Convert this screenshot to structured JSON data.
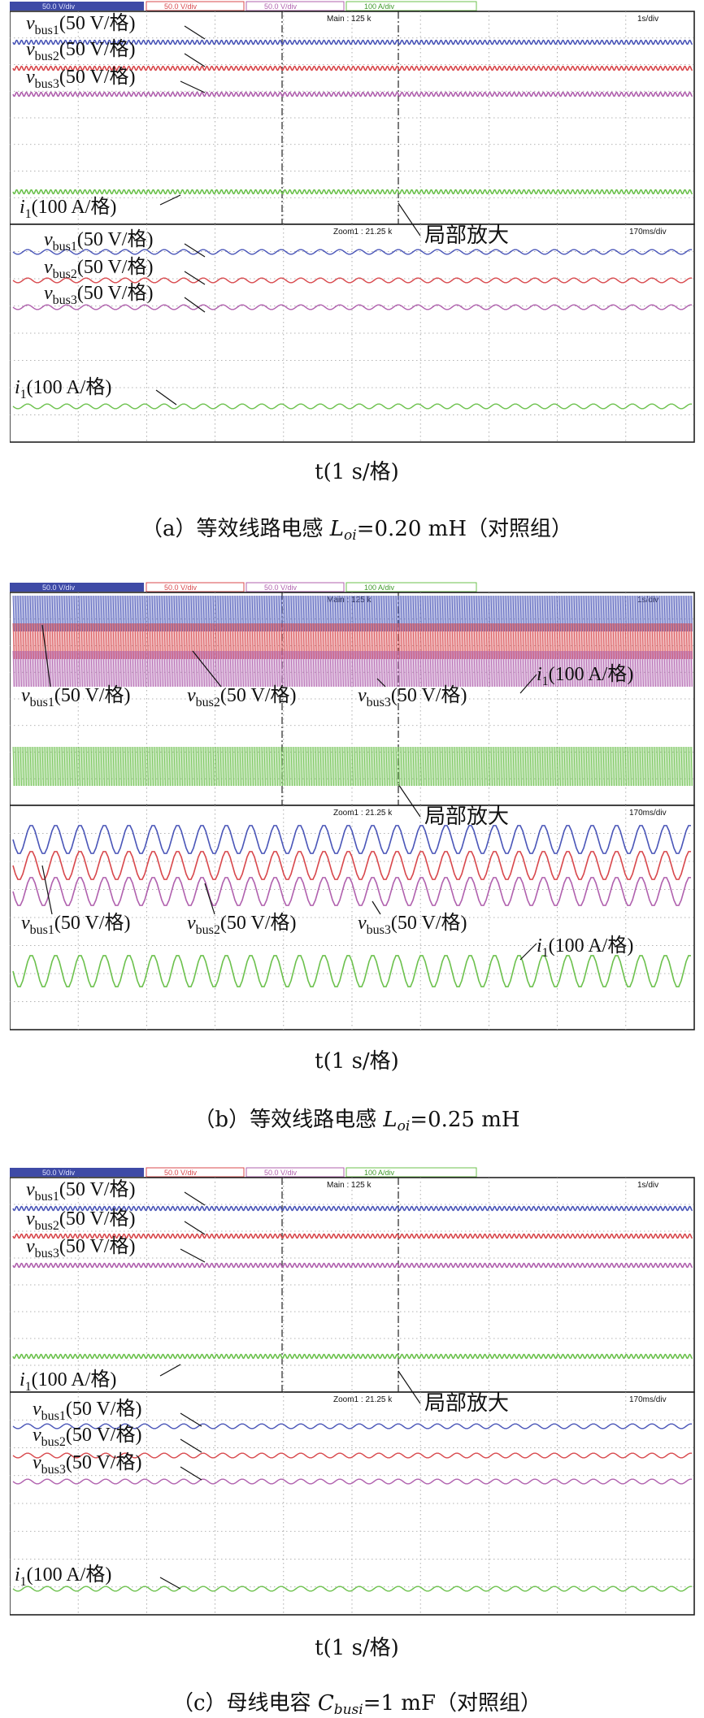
{
  "chart_data": [
    {
      "type": "line",
      "panel": "a",
      "caption": "（a）等效线路电感 L_oi=0.20 mH（对照组）",
      "caption_parts": {
        "prefix": "（a）等效线路电感 ",
        "sym": "L",
        "sub": "oi",
        "suffix": "=0.20 mH（对照组）"
      },
      "xlabel": "t(1 s/格)",
      "header": {
        "ch1": "50.0 V/div",
        "ch2": "50.0 V/div",
        "ch3": "50.0 V/div",
        "ch4": "100 A/div",
        "main": "Main : 125 k",
        "timebase": "1s/div"
      },
      "zoom": {
        "label": "Zoom1 : 21.25 k",
        "timebase": "170ms/div",
        "annotation": "局部放大"
      },
      "series": [
        {
          "name": "v_bus1(50 V/格)",
          "color": "#4a56b8",
          "amplitude": "small"
        },
        {
          "name": "v_bus2(50 V/格)",
          "color": "#d8484c",
          "amplitude": "small"
        },
        {
          "name": "v_bus3(50 V/格)",
          "color": "#b061ae",
          "amplitude": "small"
        },
        {
          "name": "i_1(100 A/格)",
          "color": "#6cc14d",
          "amplitude": "small"
        }
      ]
    },
    {
      "type": "line",
      "panel": "b",
      "caption": "（b）等效线路电感 L_oi=0.25 mH",
      "caption_parts": {
        "prefix": "（b）等效线路电感 ",
        "sym": "L",
        "sub": "oi",
        "suffix": "=0.25 mH"
      },
      "xlabel": "t(1 s/格)",
      "header": {
        "ch1": "50.0 V/div",
        "ch2": "50.0 V/div",
        "ch3": "50.0 V/div",
        "ch4": "100 A/div",
        "main": "Main : 125 k",
        "timebase": "1s/div"
      },
      "zoom": {
        "label": "Zoom1 : 21.25 k",
        "timebase": "170ms/div",
        "annotation": "局部放大"
      },
      "series": [
        {
          "name": "v_bus1(50 V/格)",
          "color": "#4a56b8",
          "amplitude": "large"
        },
        {
          "name": "v_bus2(50 V/格)",
          "color": "#d8484c",
          "amplitude": "large"
        },
        {
          "name": "v_bus3(50 V/格)",
          "color": "#b061ae",
          "amplitude": "large"
        },
        {
          "name": "i_1(100 A/格)",
          "color": "#6cc14d",
          "amplitude": "large"
        }
      ]
    },
    {
      "type": "line",
      "panel": "c",
      "caption": "（c）母线电容 C_busi=1 mF（对照组）",
      "caption_parts": {
        "prefix": "（c）母线电容 ",
        "sym": "C",
        "sub": "busi",
        "suffix": "=1 mF（对照组）"
      },
      "xlabel": "t(1 s/格)",
      "header": {
        "ch1": "50.0 V/div",
        "ch2": "50.0 V/div",
        "ch3": "50.0 V/div",
        "ch4": "100 A/div",
        "main": "Main : 125 k",
        "timebase": "1s/div"
      },
      "zoom": {
        "label": "Zoom1 : 21.25 k",
        "timebase": "170ms/div",
        "annotation": "局部放大"
      },
      "series": [
        {
          "name": "v_bus1(50 V/格)",
          "color": "#4a56b8",
          "amplitude": "small"
        },
        {
          "name": "v_bus2(50 V/格)",
          "color": "#d8484c",
          "amplitude": "small"
        },
        {
          "name": "v_bus3(50 V/格)",
          "color": "#b061ae",
          "amplitude": "small"
        },
        {
          "name": "i_1(100 A/格)",
          "color": "#6cc14d",
          "amplitude": "small"
        }
      ]
    }
  ],
  "labels": {
    "v": "v",
    "i": "i",
    "bus1": "bus1",
    "bus2": "bus2",
    "bus3": "bus3",
    "volt_unit": "(50 V/格)",
    "cur_sub": "1",
    "cur_unit": "(100 A/格)"
  }
}
